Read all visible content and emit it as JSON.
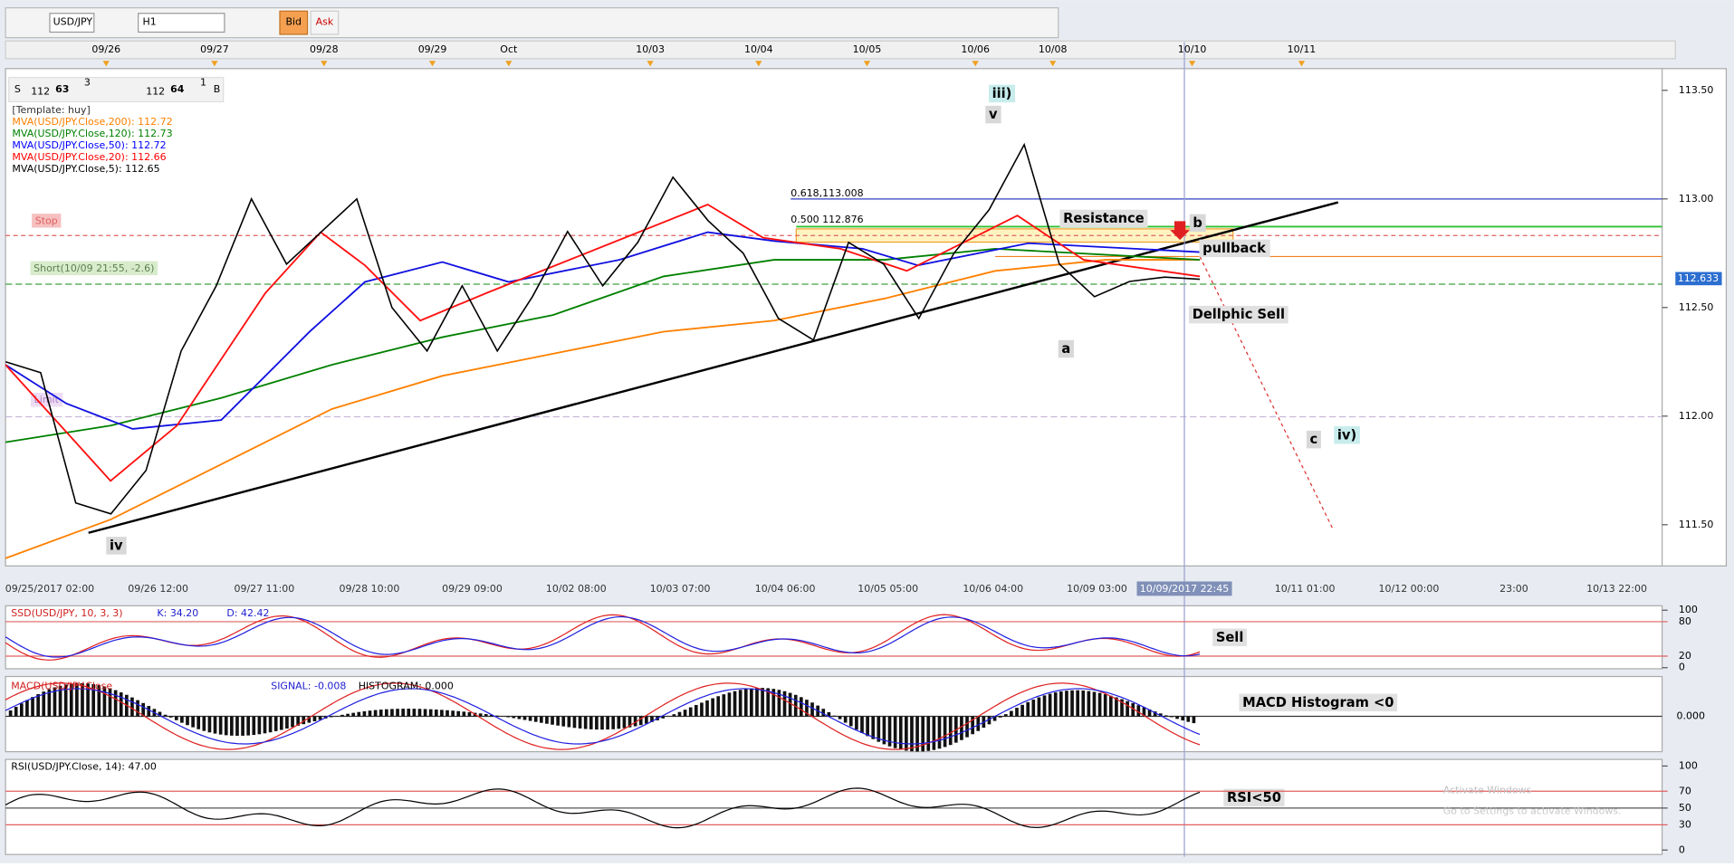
{
  "toolbar": {
    "symbol": "USD/JPY",
    "timeframe": "H1",
    "bid": "Bid",
    "ask": "Ask"
  },
  "top_dates": [
    "09/26",
    "09/27",
    "09/28",
    "09/29",
    "Oct",
    "10/03",
    "10/04",
    "10/05",
    "10/06",
    "10/08",
    "10/10",
    "10/11"
  ],
  "quote": {
    "sell": "S",
    "sell_big": "112",
    "sell_pips": "63",
    "sell_frac": "3",
    "buy_big": "112",
    "buy_pips": "64",
    "buy_frac": "1",
    "buy": "B"
  },
  "legend": [
    {
      "text": "[Template: huy]",
      "color": "#333333"
    },
    {
      "text": "MVA(USD/JPY.Close,200): 112.72",
      "color": "#ff7f00"
    },
    {
      "text": "MVA(USD/JPY.Close,120): 112.73",
      "color": "#008000"
    },
    {
      "text": "MVA(USD/JPY.Close,50): 112.72",
      "color": "#0000ff"
    },
    {
      "text": "MVA(USD/JPY.Close,20): 112.66",
      "color": "#ff0000"
    },
    {
      "text": "MVA(USD/JPY.Close,5): 112.65",
      "color": "#000000"
    }
  ],
  "orders": {
    "stop": "Stop",
    "short": "Short(10/09 21:55, -2.6)",
    "limit": "Limit"
  },
  "fib": {
    "level_618": "0.618,113.008",
    "level_500": "0.500 112.876"
  },
  "annotations": {
    "wave_iii": "iii)",
    "wave_v": "v",
    "wave_iv": "iv",
    "wave_a": "a",
    "wave_b": "b",
    "wave_c": "c",
    "wave_iv_target": "iv)",
    "resistance": "Resistance",
    "pullback": "pullback",
    "signal": "Dellphic Sell",
    "ssd_note": "Sell",
    "macd_note": "MACD Histogram <0",
    "rsi_note": "RSI<50"
  },
  "price_axis": {
    "ylim": [
      111.31,
      113.6
    ],
    "ticks": [
      {
        "value": 113.5,
        "label": "113.50"
      },
      {
        "value": 113.0,
        "label": "113.00"
      },
      {
        "value": 112.5,
        "label": "112.50"
      },
      {
        "value": 112.0,
        "label": "112.00"
      },
      {
        "value": 111.5,
        "label": "111.50"
      }
    ],
    "current": 112.633
  },
  "closes": [
    112.25,
    112.2,
    111.6,
    111.55,
    111.75,
    112.3,
    112.6,
    113.0,
    112.7,
    112.85,
    113.0,
    112.5,
    112.3,
    112.6,
    112.3,
    112.55,
    112.85,
    112.6,
    112.8,
    113.1,
    112.9,
    112.75,
    112.45,
    112.35,
    112.8,
    112.7,
    112.45,
    112.75,
    112.95,
    113.25,
    112.7,
    112.55,
    112.62,
    112.64,
    112.63
  ],
  "time_axis": [
    "09/25/2017 02:00",
    "09/26 12:00",
    "09/27 11:00",
    "09/28 10:00",
    "09/29 09:00",
    "10/02 08:00",
    "10/03 07:00",
    "10/04 06:00",
    "10/05 05:00",
    "10/06 04:00",
    "10/09 03:00",
    "10/09/2017 22:45",
    "10/11 01:00",
    "10/12 00:00",
    "23:00",
    "10/13 22:00"
  ],
  "ssd": {
    "label": "SSD(USD/JPY, 10, 3, 3)",
    "k": "K: 34.20",
    "d": "D: 42.42",
    "ticks": [
      100,
      80,
      20,
      0
    ]
  },
  "macd": {
    "label": "MACD(USD/JPY.Close",
    "signal": "SIGNAL: -0.008",
    "histogram": "HISTOGRAM: 0.000",
    "tick": "0.000"
  },
  "rsi": {
    "label": "RSI(USD/JPY.Close, 14): 47.00",
    "ticks": [
      100,
      70,
      50,
      30,
      0
    ]
  },
  "watermark": {
    "title": "Activate Windows",
    "subtitle": "Go to Settings to activate Windows."
  }
}
